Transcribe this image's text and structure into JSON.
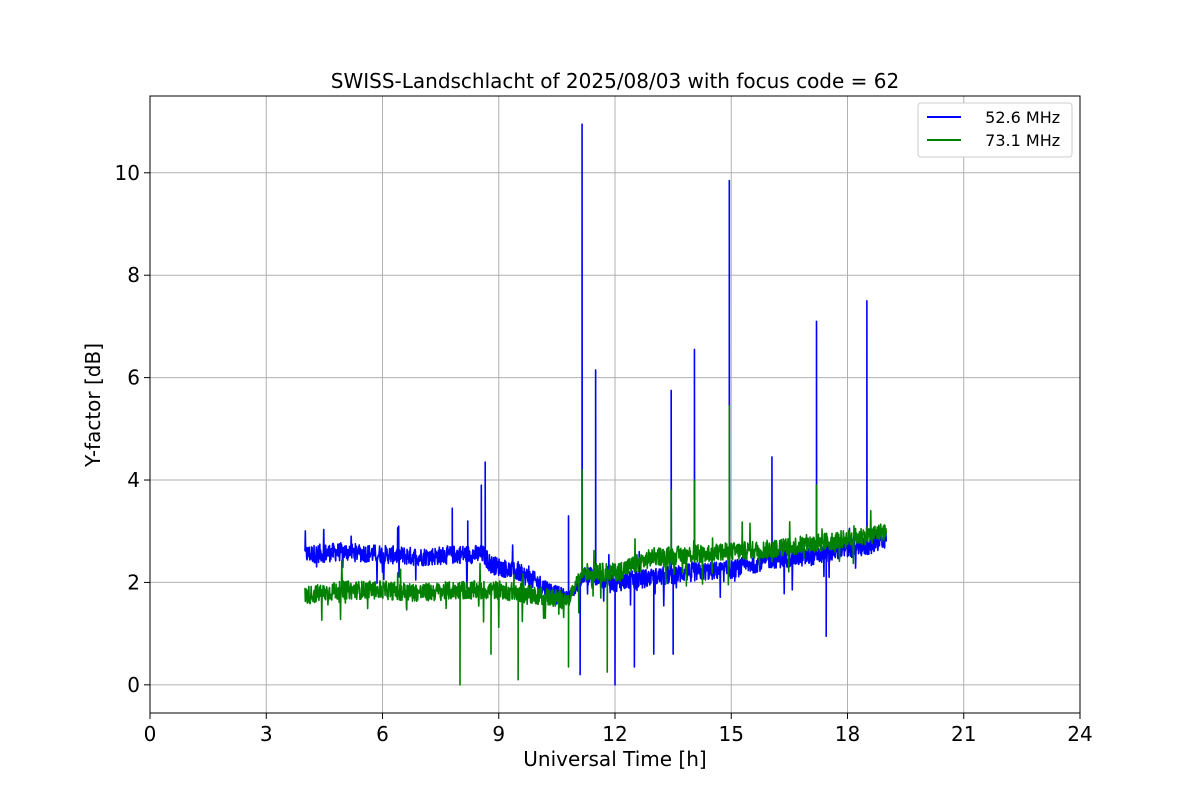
{
  "chart_data": {
    "type": "line",
    "title": "SWISS-Landschlacht of 2025/08/03 with focus code = 62",
    "xlabel": "Universal Time [h]",
    "ylabel": "Y-factor [dB]",
    "xlim": [
      0,
      24
    ],
    "ylim": [
      -0.55,
      11.5
    ],
    "xticks": [
      0,
      3,
      6,
      9,
      12,
      15,
      18,
      21,
      24
    ],
    "yticks": [
      0,
      2,
      4,
      6,
      8,
      10
    ],
    "grid": true,
    "legend_position": "top-right",
    "series": [
      {
        "name": "  52.6 MHz",
        "color": "#0000ff",
        "baseline": [
          [
            4.0,
            2.55
          ],
          [
            5.0,
            2.6
          ],
          [
            6.0,
            2.55
          ],
          [
            7.0,
            2.5
          ],
          [
            8.0,
            2.55
          ],
          [
            8.6,
            2.55
          ],
          [
            8.8,
            2.35
          ],
          [
            9.5,
            2.2
          ],
          [
            10.0,
            2.0
          ],
          [
            10.5,
            1.75
          ],
          [
            10.8,
            1.7
          ],
          [
            11.0,
            1.9
          ],
          [
            11.2,
            2.15
          ],
          [
            12.0,
            2.0
          ],
          [
            13.0,
            2.1
          ],
          [
            14.0,
            2.2
          ],
          [
            15.0,
            2.25
          ],
          [
            16.0,
            2.45
          ],
          [
            17.0,
            2.5
          ],
          [
            18.0,
            2.65
          ],
          [
            18.5,
            2.7
          ],
          [
            19.0,
            2.85
          ]
        ],
        "spikes": [
          [
            7.8,
            3.45
          ],
          [
            8.2,
            3.2
          ],
          [
            8.55,
            3.9
          ],
          [
            8.65,
            4.35
          ],
          [
            10.8,
            3.3
          ],
          [
            11.15,
            10.95
          ],
          [
            11.5,
            6.15
          ],
          [
            13.45,
            5.75
          ],
          [
            14.05,
            6.55
          ],
          [
            14.95,
            9.85
          ],
          [
            16.05,
            4.45
          ],
          [
            17.2,
            7.1
          ],
          [
            18.5,
            7.5
          ]
        ],
        "dips": [
          [
            11.1,
            0.2
          ],
          [
            12.0,
            0.0
          ],
          [
            12.5,
            0.35
          ],
          [
            13.0,
            0.6
          ],
          [
            13.5,
            0.6
          ],
          [
            17.45,
            0.95
          ]
        ]
      },
      {
        "name": "  73.1 MHz",
        "color": "#008000",
        "baseline": [
          [
            4.0,
            1.75
          ],
          [
            5.0,
            1.85
          ],
          [
            6.0,
            1.85
          ],
          [
            7.0,
            1.8
          ],
          [
            8.0,
            1.85
          ],
          [
            9.0,
            1.85
          ],
          [
            10.0,
            1.75
          ],
          [
            10.8,
            1.65
          ],
          [
            11.0,
            2.0
          ],
          [
            11.2,
            2.2
          ],
          [
            12.0,
            2.2
          ],
          [
            13.0,
            2.5
          ],
          [
            14.0,
            2.55
          ],
          [
            15.0,
            2.6
          ],
          [
            16.0,
            2.65
          ],
          [
            17.0,
            2.75
          ],
          [
            18.0,
            2.85
          ],
          [
            19.0,
            3.0
          ]
        ],
        "spikes": [
          [
            11.15,
            4.2
          ],
          [
            13.45,
            3.8
          ],
          [
            14.05,
            4.0
          ],
          [
            14.95,
            5.45
          ],
          [
            17.2,
            3.9
          ]
        ],
        "dips": [
          [
            8.0,
            0.0
          ],
          [
            8.8,
            0.6
          ],
          [
            9.5,
            0.1
          ],
          [
            10.8,
            0.35
          ],
          [
            11.8,
            0.25
          ]
        ]
      }
    ]
  }
}
